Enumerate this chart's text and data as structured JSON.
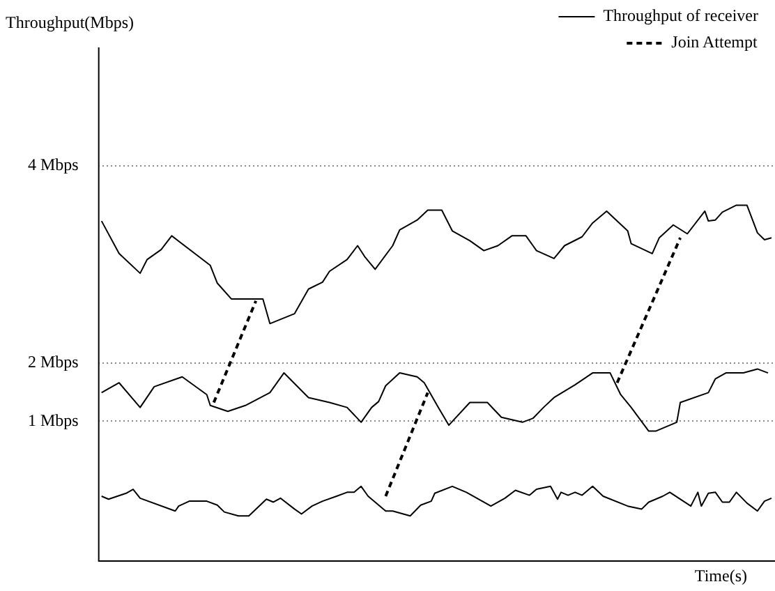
{
  "chart_data": {
    "type": "line",
    "ylabel": "Throughput(Mbps)",
    "xlabel": "Time(s)",
    "ylim": [
      0,
      5.2
    ],
    "categories": [
      null,
      null,
      null,
      null,
      null,
      null,
      null,
      null,
      null,
      null,
      null,
      null,
      null,
      null,
      null,
      null,
      null,
      null,
      null,
      null,
      null,
      null,
      null,
      null,
      null,
      null,
      null,
      null,
      null,
      null,
      null,
      null,
      null,
      null,
      null,
      null,
      null,
      null,
      null,
      null,
      null,
      null,
      null,
      null,
      null,
      null,
      null,
      null,
      null,
      null,
      null,
      null,
      null,
      null,
      null,
      null,
      null,
      null,
      null,
      null,
      null,
      null,
      null,
      null,
      null,
      null,
      null,
      null,
      null,
      null,
      null,
      null,
      null,
      null,
      null,
      null,
      null,
      null,
      null,
      null,
      null,
      null,
      null,
      null,
      null,
      null,
      null,
      null,
      null,
      null,
      null,
      null,
      null,
      null,
      null,
      null,
      null,
      null,
      null,
      null,
      null,
      null,
      null,
      null,
      null,
      null,
      null,
      null,
      null,
      null,
      null,
      null,
      null,
      null,
      null,
      null,
      null,
      null,
      null,
      null,
      null,
      null,
      null,
      null,
      null,
      null,
      null,
      null,
      null,
      null,
      null,
      null,
      null,
      null,
      null,
      null,
      null,
      null,
      null,
      null,
      null,
      null,
      null,
      null,
      null,
      null,
      null,
      null,
      null,
      null,
      null,
      null,
      null,
      null,
      null,
      null,
      null,
      null,
      null,
      null,
      null,
      null,
      null,
      null,
      null,
      null,
      null,
      null,
      null,
      null,
      null,
      null,
      null,
      null,
      null,
      null,
      null,
      null,
      null,
      null,
      null,
      null,
      null,
      null,
      null,
      null,
      null,
      null,
      null,
      null,
      null,
      null,
      null,
      null
    ],
    "yticks": [
      {
        "value": 1.41,
        "label": "1 Mbps"
      },
      {
        "value": 2,
        "label": "2 Mbps"
      },
      {
        "value": 4,
        "label": "4 Mbps"
      }
    ],
    "grid": "y",
    "legend": "top right",
    "tick_labels": "y",
    "marker": "none",
    "series": [
      {
        "name": "Throughput of receiver",
        "color": "#000000",
        "line_style": "solid",
        "values": [
          null,
          3.44,
          null,
          null,
          null,
          null,
          3.11,
          null,
          null,
          null,
          null,
          null,
          2.91,
          null,
          3.05,
          null,
          null,
          null,
          3.15,
          null,
          null,
          3.29,
          null,
          null,
          null,
          null,
          null,
          null,
          null,
          null,
          null,
          null,
          2.99,
          null,
          2.81,
          null,
          null,
          null,
          2.65,
          null,
          null,
          null,
          null,
          null,
          null,
          null,
          null,
          2.65,
          null,
          2.4,
          null,
          null,
          null,
          null,
          null,
          null,
          2.5,
          null,
          null,
          null,
          2.75,
          null,
          null,
          null,
          2.82,
          null,
          2.93,
          null,
          null,
          null,
          null,
          3.05,
          null,
          null,
          3.19,
          null,
          3.08,
          null,
          null,
          2.95,
          null,
          null,
          null,
          null,
          3.19,
          null,
          3.35,
          null,
          null,
          null,
          null,
          3.45,
          null,
          null,
          3.55,
          null,
          null,
          null,
          3.55,
          null,
          null,
          3.34,
          null,
          null,
          null,
          null,
          3.24,
          null,
          null,
          null,
          3.14,
          null,
          null,
          null,
          3.19,
          null,
          null,
          null,
          3.29,
          null,
          null,
          null,
          3.29,
          null,
          null,
          3.14,
          null,
          null,
          null,
          null,
          3.06,
          null,
          null,
          3.19,
          null,
          null,
          null,
          null,
          3.28,
          null,
          null,
          3.42,
          null,
          null,
          null,
          3.54,
          null,
          null,
          null,
          null,
          null,
          3.34,
          3.21,
          null,
          null,
          null,
          null,
          null,
          3.11,
          null,
          3.27,
          null,
          null,
          null,
          3.4,
          null,
          null,
          null,
          3.31,
          null,
          null,
          null,
          null,
          3.54,
          3.44,
          null,
          3.45,
          null,
          3.53,
          null,
          null,
          null,
          3.6,
          null,
          null,
          3.6,
          null,
          null,
          3.32,
          null,
          3.25,
          null,
          3.27,
          null
        ]
      },
      {
        "color": "#000000",
        "line_style": "solid",
        "values": [
          null,
          1.7,
          null,
          null,
          null,
          null,
          1.8,
          null,
          null,
          null,
          null,
          null,
          1.55,
          null,
          null,
          null,
          1.76,
          null,
          null,
          null,
          null,
          null,
          null,
          null,
          1.86,
          null,
          null,
          null,
          null,
          null,
          null,
          1.68,
          1.57,
          null,
          null,
          null,
          null,
          1.51,
          null,
          null,
          null,
          null,
          1.57,
          null,
          null,
          null,
          null,
          null,
          null,
          1.7,
          null,
          null,
          null,
          1.9,
          null,
          null,
          null,
          null,
          null,
          null,
          1.65,
          null,
          null,
          null,
          null,
          null,
          1.6,
          null,
          null,
          null,
          null,
          1.55,
          null,
          null,
          null,
          1.4,
          null,
          null,
          1.55,
          null,
          1.61,
          null,
          1.77,
          null,
          null,
          null,
          1.9,
          null,
          null,
          null,
          null,
          1.86,
          null,
          1.8,
          null,
          null,
          null,
          1.55,
          null,
          null,
          1.37,
          null,
          null,
          null,
          null,
          null,
          1.6,
          null,
          null,
          null,
          null,
          1.6,
          null,
          null,
          null,
          1.45,
          null,
          null,
          null,
          null,
          null,
          1.4,
          null,
          null,
          1.44,
          null,
          null,
          1.55,
          null,
          null,
          1.65,
          null,
          null,
          null,
          null,
          null,
          1.78,
          null,
          null,
          null,
          null,
          1.9,
          null,
          null,
          null,
          null,
          1.9,
          null,
          null,
          1.68,
          null,
          null,
          1.55,
          null,
          null,
          null,
          null,
          1.31,
          null,
          1.31,
          null,
          null,
          null,
          null,
          null,
          1.4,
          1.6,
          null,
          null,
          null,
          null,
          null,
          null,
          null,
          1.7,
          null,
          1.84,
          null,
          null,
          1.9,
          null,
          null,
          null,
          null,
          1.9,
          null,
          null,
          null,
          1.94,
          null,
          null,
          1.9,
          null,
          null
        ]
      },
      {
        "color": "#000000",
        "line_style": "solid",
        "values": [
          null,
          0.65,
          null,
          0.62,
          null,
          null,
          null,
          null,
          0.68,
          null,
          0.72,
          null,
          0.63,
          null,
          null,
          null,
          null,
          null,
          null,
          null,
          null,
          null,
          0.5,
          0.55,
          null,
          null,
          0.6,
          null,
          null,
          null,
          null,
          0.6,
          null,
          null,
          0.56,
          null,
          0.49,
          null,
          null,
          null,
          0.45,
          null,
          null,
          0.45,
          null,
          null,
          null,
          null,
          0.62,
          null,
          0.59,
          null,
          0.63,
          null,
          null,
          null,
          0.52,
          null,
          0.47,
          null,
          null,
          0.55,
          null,
          null,
          0.6,
          null,
          null,
          null,
          0.65,
          null,
          null,
          0.69,
          null,
          0.69,
          null,
          0.75,
          null,
          0.65,
          null,
          null,
          null,
          null,
          0.5,
          null,
          0.5,
          null,
          null,
          null,
          null,
          0.45,
          null,
          null,
          0.56,
          null,
          null,
          0.6,
          0.68,
          null,
          null,
          null,
          null,
          0.75,
          null,
          null,
          null,
          0.69,
          null,
          null,
          null,
          null,
          null,
          null,
          0.55,
          null,
          null,
          null,
          0.63,
          null,
          null,
          0.71,
          null,
          null,
          null,
          0.66,
          null,
          0.72,
          null,
          null,
          null,
          0.75,
          null,
          0.62,
          0.69,
          null,
          0.66,
          null,
          0.69,
          null,
          0.66,
          null,
          null,
          0.75,
          null,
          null,
          0.65,
          null,
          null,
          null,
          null,
          null,
          null,
          0.55,
          null,
          null,
          null,
          0.52,
          null,
          0.59,
          null,
          null,
          null,
          0.65,
          null,
          0.69,
          null,
          null,
          null,
          null,
          null,
          0.55,
          null,
          0.69,
          0.55,
          null,
          0.68,
          null,
          0.69,
          null,
          0.59,
          null,
          0.59,
          null,
          0.69,
          null,
          null,
          0.58,
          null,
          null,
          0.5,
          null,
          0.6,
          null,
          0.63,
          null
        ]
      },
      {
        "name": "Join Attempt",
        "color": "#000000",
        "line_style": "dashed",
        "values": [
          null,
          null,
          null,
          null,
          null,
          null,
          null,
          null,
          null,
          null,
          null,
          null,
          null,
          null,
          null,
          null,
          null,
          null,
          null,
          null,
          null,
          null,
          null,
          null,
          null,
          null,
          null,
          null,
          null,
          null,
          null,
          null,
          null,
          1.6,
          null,
          null,
          null,
          null,
          null,
          null,
          null,
          null,
          null,
          null,
          null,
          2.63,
          null,
          null,
          null,
          null,
          null,
          null,
          null,
          null,
          null,
          null,
          null,
          null,
          null,
          null,
          null,
          null,
          null,
          null,
          null,
          null,
          null,
          null,
          null,
          null,
          null,
          null,
          null,
          null,
          null,
          null,
          null,
          null,
          null,
          null,
          null,
          null,
          null,
          null,
          null,
          null,
          null,
          null,
          null,
          null,
          null,
          null,
          null,
          null,
          null,
          null,
          null,
          null,
          null,
          null,
          null,
          null,
          null,
          null,
          null,
          null,
          null,
          null,
          null,
          null,
          null,
          null,
          null,
          null,
          null,
          null,
          null,
          null,
          null,
          null,
          null,
          null,
          null,
          null,
          null,
          null,
          null,
          null,
          null,
          null,
          null,
          null,
          null,
          null,
          null,
          null,
          null,
          null,
          null,
          null,
          null,
          null,
          null,
          null,
          null,
          null,
          null,
          null,
          null,
          null,
          null,
          null,
          null,
          null,
          null,
          null,
          null,
          null,
          null,
          null,
          null,
          null,
          null,
          null,
          null,
          null,
          null,
          null,
          null,
          null,
          null,
          null,
          null,
          null,
          null,
          null,
          null,
          null,
          null,
          null,
          null,
          null,
          null,
          null,
          null,
          null,
          null,
          null,
          null,
          null,
          null,
          null,
          null,
          null
        ]
      },
      {
        "color": "#000000",
        "line_style": "dashed",
        "values": [
          null,
          null,
          null,
          null,
          null,
          null,
          null,
          null,
          null,
          null,
          null,
          null,
          null,
          null,
          null,
          null,
          null,
          null,
          null,
          null,
          null,
          null,
          null,
          null,
          null,
          null,
          null,
          null,
          null,
          null,
          null,
          null,
          null,
          null,
          null,
          null,
          null,
          null,
          null,
          null,
          null,
          null,
          null,
          null,
          null,
          null,
          null,
          null,
          null,
          null,
          null,
          null,
          null,
          null,
          null,
          null,
          null,
          null,
          null,
          null,
          null,
          null,
          null,
          null,
          null,
          null,
          null,
          null,
          null,
          null,
          null,
          null,
          null,
          null,
          null,
          null,
          null,
          null,
          null,
          null,
          null,
          null,
          0.65,
          null,
          null,
          null,
          null,
          null,
          null,
          null,
          null,
          null,
          null,
          null,
          1.7,
          null,
          null,
          null,
          null,
          null,
          null,
          null,
          null,
          null,
          null,
          null,
          null,
          null,
          null,
          null,
          null,
          null,
          null,
          null,
          null,
          null,
          null,
          null,
          null,
          null,
          null,
          null,
          null,
          null,
          null,
          null,
          null,
          null,
          null,
          null,
          null,
          null,
          null,
          null,
          null,
          null,
          null,
          null,
          null,
          null,
          null,
          null,
          null,
          null,
          null,
          null,
          null,
          null,
          null,
          null,
          null,
          null,
          null,
          null,
          null,
          null,
          null,
          null,
          null,
          null,
          null,
          null,
          null,
          null,
          null,
          null,
          null,
          null,
          null,
          null,
          null,
          null,
          null,
          null,
          null,
          null,
          null,
          null,
          null,
          null,
          null,
          null,
          null,
          null,
          null,
          null,
          null,
          null,
          null,
          null,
          null,
          null,
          null,
          null
        ]
      },
      {
        "color": "#000000",
        "line_style": "dashed",
        "values": [
          null,
          null,
          null,
          null,
          null,
          null,
          null,
          null,
          null,
          null,
          null,
          null,
          null,
          null,
          null,
          null,
          null,
          null,
          null,
          null,
          null,
          null,
          null,
          null,
          null,
          null,
          null,
          null,
          null,
          null,
          null,
          null,
          null,
          null,
          null,
          null,
          null,
          null,
          null,
          null,
          null,
          null,
          null,
          null,
          null,
          null,
          null,
          null,
          null,
          null,
          null,
          null,
          null,
          null,
          null,
          null,
          null,
          null,
          null,
          null,
          null,
          null,
          null,
          null,
          null,
          null,
          null,
          null,
          null,
          null,
          null,
          null,
          null,
          null,
          null,
          null,
          null,
          null,
          null,
          null,
          null,
          null,
          null,
          null,
          null,
          null,
          null,
          null,
          null,
          null,
          null,
          null,
          null,
          null,
          null,
          null,
          null,
          null,
          null,
          null,
          null,
          null,
          null,
          null,
          null,
          null,
          null,
          null,
          null,
          null,
          null,
          null,
          null,
          null,
          null,
          null,
          null,
          null,
          null,
          null,
          null,
          null,
          null,
          null,
          null,
          null,
          null,
          null,
          null,
          null,
          null,
          null,
          null,
          null,
          null,
          null,
          null,
          null,
          null,
          null,
          null,
          null,
          null,
          null,
          null,
          null,
          null,
          null,
          1.8,
          null,
          null,
          null,
          null,
          null,
          null,
          null,
          null,
          null,
          null,
          null,
          null,
          null,
          null,
          null,
          null,
          null,
          3.27,
          null,
          null,
          null,
          null,
          null,
          null,
          null,
          null,
          null,
          null,
          null,
          null,
          null,
          null,
          null,
          null,
          null,
          null,
          null,
          null,
          null,
          null,
          null,
          null,
          null,
          null,
          null
        ]
      }
    ]
  }
}
